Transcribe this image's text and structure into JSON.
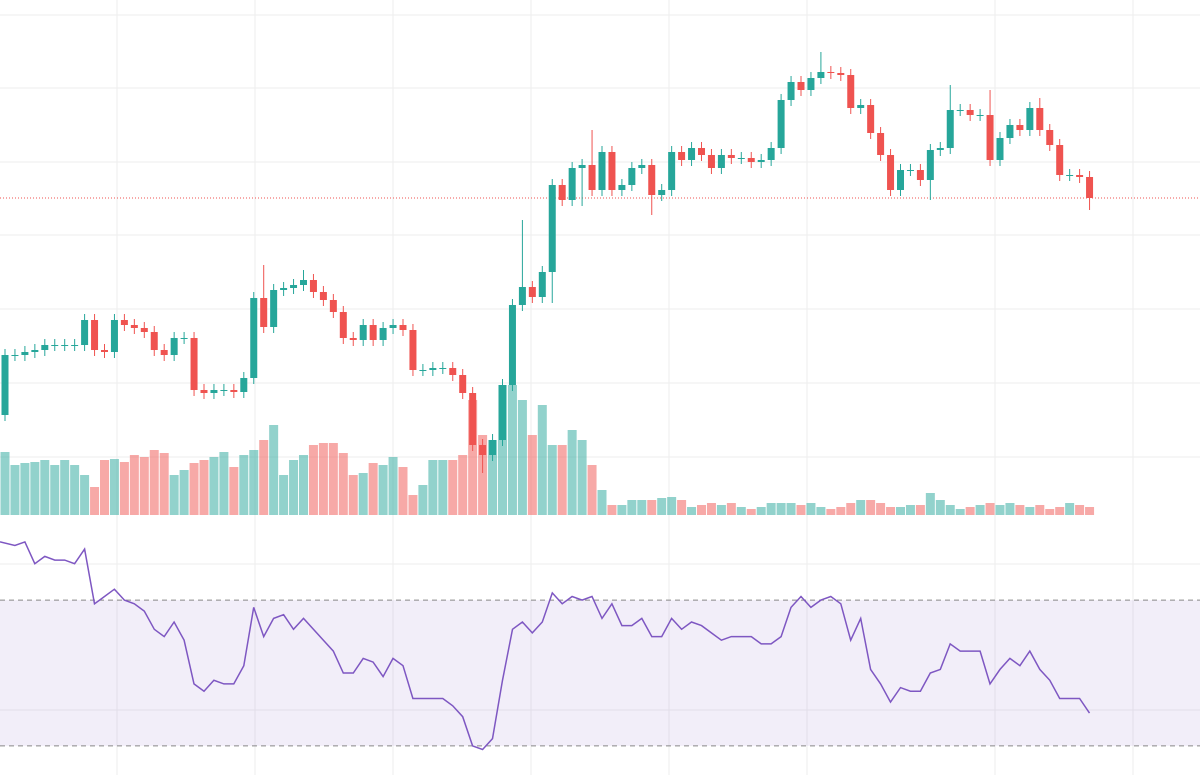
{
  "chart_data": {
    "type": "candlestick",
    "up_color": "#26a69a",
    "down_color": "#ef5350",
    "ylim": [
      0,
      500
    ],
    "open": [
      85,
      145,
      145,
      148,
      150,
      155,
      155,
      155,
      155,
      180,
      150,
      148,
      180,
      175,
      172,
      168,
      150,
      145,
      162,
      162,
      110,
      107,
      110,
      110,
      108,
      122,
      202,
      173,
      210,
      212,
      215,
      220,
      208,
      200,
      188,
      162,
      160,
      175,
      160,
      172,
      175,
      170,
      130,
      130,
      132,
      132,
      125,
      107,
      55,
      45,
      60,
      115,
      195,
      213,
      203,
      228,
      315,
      300,
      332,
      335,
      310,
      348,
      310,
      315,
      332,
      335,
      305,
      310,
      348,
      340,
      352,
      345,
      332,
      345,
      342,
      342,
      338,
      340,
      352,
      400,
      418,
      410,
      422,
      428,
      427,
      425,
      392,
      395,
      367,
      345,
      310,
      330,
      330,
      320,
      350,
      352,
      390,
      390,
      385,
      385,
      340,
      362,
      375,
      370,
      392,
      370,
      355,
      325,
      325,
      323
    ],
    "high": [
      151,
      151,
      154,
      156,
      161,
      161,
      161,
      161,
      186,
      186,
      156,
      186,
      186,
      181,
      178,
      174,
      156,
      168,
      168,
      168,
      116,
      116,
      116,
      116,
      128,
      208,
      235,
      216,
      218,
      221,
      230,
      226,
      214,
      206,
      194,
      168,
      181,
      181,
      178,
      181,
      181,
      176,
      136,
      138,
      138,
      138,
      131,
      113,
      61,
      66,
      121,
      201,
      280,
      219,
      234,
      321,
      321,
      338,
      341,
      370,
      354,
      354,
      321,
      338,
      341,
      341,
      316,
      354,
      354,
      358,
      358,
      351,
      351,
      351,
      348,
      348,
      346,
      358,
      406,
      424,
      424,
      428,
      448,
      434,
      433,
      431,
      401,
      401,
      373,
      351,
      336,
      336,
      336,
      356,
      358,
      415,
      396,
      396,
      391,
      410,
      368,
      381,
      381,
      398,
      402,
      376,
      361,
      331,
      331,
      329
    ],
    "low": [
      79,
      139,
      139,
      142,
      144,
      149,
      149,
      149,
      149,
      144,
      142,
      142,
      169,
      166,
      162,
      144,
      139,
      139,
      156,
      104,
      101,
      101,
      104,
      102,
      102,
      116,
      167,
      167,
      204,
      206,
      209,
      202,
      194,
      182,
      156,
      154,
      154,
      154,
      154,
      166,
      164,
      124,
      124,
      124,
      126,
      119,
      101,
      49,
      27,
      39,
      54,
      109,
      189,
      197,
      197,
      197,
      294,
      294,
      294,
      304,
      304,
      304,
      304,
      309,
      326,
      285,
      299,
      304,
      334,
      334,
      339,
      326,
      326,
      336,
      336,
      332,
      332,
      334,
      346,
      394,
      404,
      404,
      416,
      421,
      419,
      386,
      386,
      361,
      339,
      304,
      304,
      324,
      314,
      300,
      344,
      346,
      384,
      379,
      379,
      334,
      334,
      356,
      364,
      364,
      364,
      349,
      319,
      319,
      317,
      290
    ],
    "close": [
      145,
      145,
      148,
      150,
      155,
      155,
      155,
      155,
      180,
      150,
      148,
      180,
      175,
      172,
      168,
      150,
      145,
      162,
      162,
      110,
      107,
      110,
      110,
      108,
      122,
      202,
      173,
      210,
      212,
      215,
      220,
      208,
      200,
      188,
      162,
      160,
      175,
      160,
      172,
      175,
      170,
      130,
      130,
      132,
      132,
      125,
      107,
      55,
      45,
      60,
      115,
      195,
      213,
      203,
      228,
      315,
      300,
      332,
      335,
      310,
      348,
      310,
      315,
      332,
      335,
      305,
      310,
      348,
      340,
      352,
      345,
      332,
      345,
      342,
      342,
      338,
      340,
      352,
      400,
      418,
      410,
      422,
      428,
      427,
      425,
      392,
      395,
      367,
      345,
      310,
      330,
      330,
      320,
      350,
      352,
      390,
      390,
      385,
      385,
      340,
      362,
      375,
      370,
      392,
      370,
      355,
      325,
      325,
      323,
      302
    ],
    "volume": {
      "ylim": [
        0,
        400
      ],
      "values": [
        63,
        50,
        52,
        53,
        55,
        50,
        55,
        50,
        40,
        28,
        55,
        56,
        53,
        60,
        58,
        65,
        62,
        40,
        45,
        52,
        55,
        58,
        63,
        48,
        60,
        65,
        75,
        90,
        40,
        55,
        60,
        70,
        72,
        72,
        62,
        40,
        42,
        52,
        50,
        58,
        48,
        20,
        30,
        55,
        55,
        55,
        60,
        115,
        80,
        75,
        130,
        130,
        115,
        80,
        110,
        70,
        70,
        85,
        75,
        50,
        25,
        10,
        10,
        15,
        15,
        15,
        17,
        18,
        15,
        8,
        10,
        12,
        10,
        12,
        8,
        6,
        8,
        12,
        12,
        12,
        10,
        12,
        8,
        6,
        8,
        12,
        15,
        15,
        12,
        8,
        8,
        10,
        10,
        22,
        15,
        10,
        6,
        8,
        10,
        12,
        10,
        12,
        10,
        8,
        10,
        6,
        8,
        12,
        10,
        8
      ]
    },
    "rsi": {
      "color": "#7e57c2",
      "ylim": [
        22,
        92
      ],
      "levels": [
        30,
        70
      ],
      "values": [
        86,
        85,
        86,
        80,
        82,
        81,
        81,
        80,
        84,
        69,
        71,
        73,
        70,
        69,
        67,
        62,
        60,
        64,
        59,
        47,
        45,
        48,
        47,
        47,
        52,
        68,
        60,
        65,
        66,
        62,
        65,
        62,
        59,
        56,
        50,
        50,
        54,
        53,
        49,
        54,
        52,
        43,
        43,
        43,
        43,
        41,
        38,
        30,
        29,
        32,
        48,
        62,
        64,
        61,
        64,
        72,
        69,
        71,
        70,
        71,
        65,
        69,
        63,
        63,
        65,
        60,
        60,
        65,
        62,
        64,
        63,
        61,
        59,
        60,
        60,
        60,
        58,
        58,
        60,
        68,
        71,
        68,
        70,
        71,
        69,
        59,
        65,
        51,
        47,
        42,
        46,
        45,
        45,
        50,
        51,
        58,
        56,
        56,
        56,
        47,
        51,
        54,
        52,
        56,
        51,
        48,
        43,
        43,
        43,
        39
      ]
    }
  }
}
